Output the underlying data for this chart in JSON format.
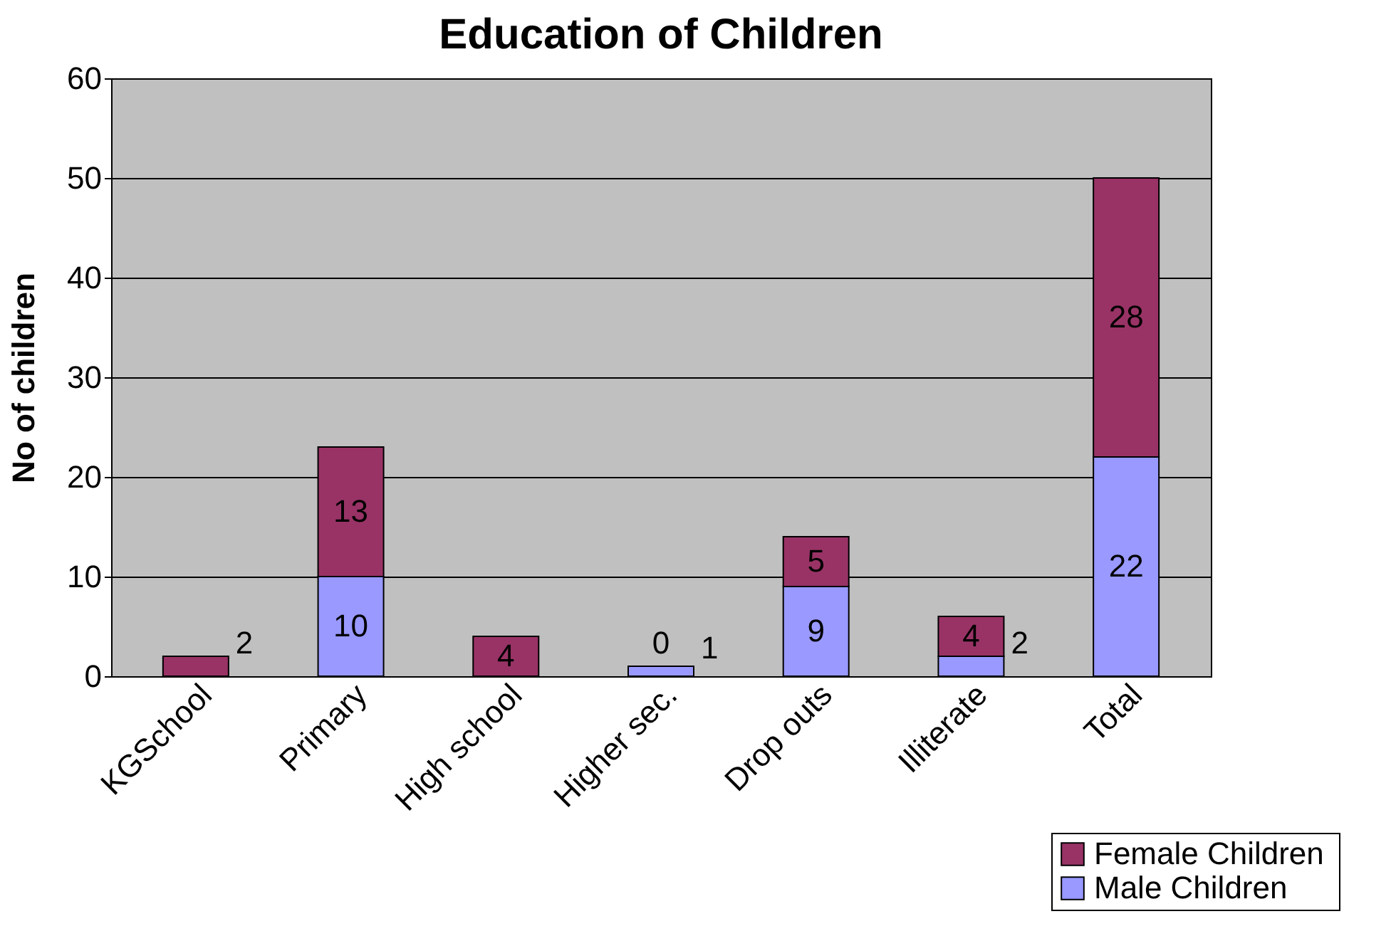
{
  "chart_data": {
    "type": "bar",
    "title": "Education of Children",
    "ylabel": "No of children",
    "categories": [
      "KGSchool",
      "Primary",
      "High school",
      "Higher sec.",
      "Drop outs",
      "Illiterate",
      "Total"
    ],
    "stacked": true,
    "series": [
      {
        "name": "Male Children",
        "color": "#9999ff",
        "values": [
          0,
          10,
          0,
          1,
          9,
          2,
          22
        ],
        "value_labels": [
          null,
          "10",
          null,
          "1",
          "9",
          "2",
          "22"
        ]
      },
      {
        "name": "Female  Children",
        "color": "#993366",
        "values": [
          2,
          13,
          4,
          0,
          5,
          4,
          28
        ],
        "value_labels": [
          "2",
          "13",
          "4",
          "0",
          "5",
          "4",
          "28"
        ]
      }
    ],
    "ylim": [
      0,
      60
    ],
    "yticks": [
      0,
      10,
      20,
      30,
      40,
      50,
      60
    ],
    "grid": "y",
    "legend": "bottom right"
  }
}
